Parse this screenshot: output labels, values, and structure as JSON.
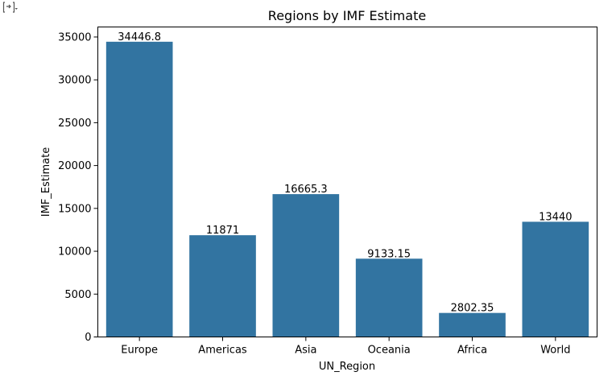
{
  "toolbar": {
    "icon": "output-toggle-icon"
  },
  "chart_data": {
    "type": "bar",
    "title": "Regions by IMF Estimate",
    "xlabel": "UN_Region",
    "ylabel": "IMF_Estimate",
    "categories": [
      "Europe",
      "Americas",
      "Asia",
      "Oceania",
      "Africa",
      "World"
    ],
    "values": [
      34446.8,
      11871,
      16665.3,
      9133.15,
      2802.35,
      13440
    ],
    "data_labels": [
      "34446.8",
      "11871",
      "16665.3",
      "9133.15",
      "2802.35",
      "13440"
    ],
    "ylim": [
      0,
      36170
    ],
    "yticks": [
      0,
      5000,
      10000,
      15000,
      20000,
      25000,
      30000,
      35000
    ],
    "bar_color": "#3274a1",
    "grid": false,
    "legend": "none"
  }
}
